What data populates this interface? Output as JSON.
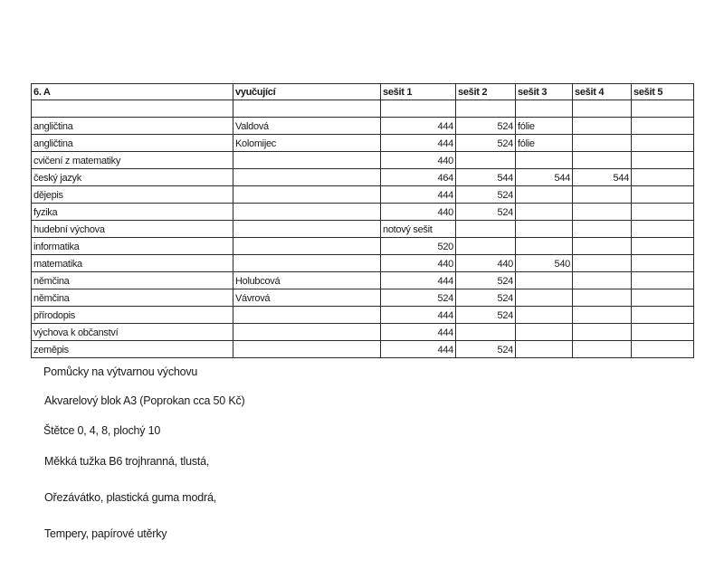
{
  "table": {
    "headers": [
      "6. A",
      "vyučující",
      "sešit 1",
      "sešit 2",
      "sešit 3",
      "sešit 4",
      "sešit 5"
    ],
    "rows": [
      [
        "",
        "",
        "",
        "",
        "",
        "",
        ""
      ],
      [
        "angličtina",
        "Valdová",
        "444",
        "524",
        "fólie",
        "",
        ""
      ],
      [
        "angličtina",
        "Kolomijec",
        "444",
        "524",
        "fólie",
        "",
        ""
      ],
      [
        "cvičení z matematiky",
        "",
        "440",
        "",
        "",
        "",
        ""
      ],
      [
        "český jazyk",
        "",
        "464",
        "544",
        "544",
        "544",
        ""
      ],
      [
        "dějepis",
        "",
        "444",
        "524",
        "",
        "",
        ""
      ],
      [
        "fyzika",
        "",
        "440",
        "524",
        "",
        "",
        ""
      ],
      [
        "hudební výchova",
        "",
        "notový sešit",
        "",
        "",
        "",
        ""
      ],
      [
        "informatika",
        "",
        "520",
        "",
        "",
        "",
        ""
      ],
      [
        "matematika",
        "",
        "440",
        "440",
        "540",
        "",
        ""
      ],
      [
        "němčina",
        "Holubcová",
        "444",
        "524",
        "",
        "",
        ""
      ],
      [
        "němčina",
        "Vávrová",
        "524",
        "524",
        "",
        "",
        ""
      ],
      [
        "přírodopis",
        "",
        "444",
        "524",
        "",
        "",
        ""
      ],
      [
        "výchova k občanství",
        "",
        "444",
        "",
        "",
        "",
        ""
      ],
      [
        "zeměpis",
        "",
        "444",
        "524",
        "",
        "",
        ""
      ]
    ]
  },
  "notes": [
    "Pomůcky na výtvarnou výchovu",
    "Akvarelový blok A3 (Poprokan cca 50 Kč)",
    "Štětce 0, 4, 8, plochý 10",
    "Měkká tužka B6 trojhranná, tlustá,",
    "Ořezávátko, plastická guma modrá,",
    "Tempery, papírové utěrky"
  ]
}
